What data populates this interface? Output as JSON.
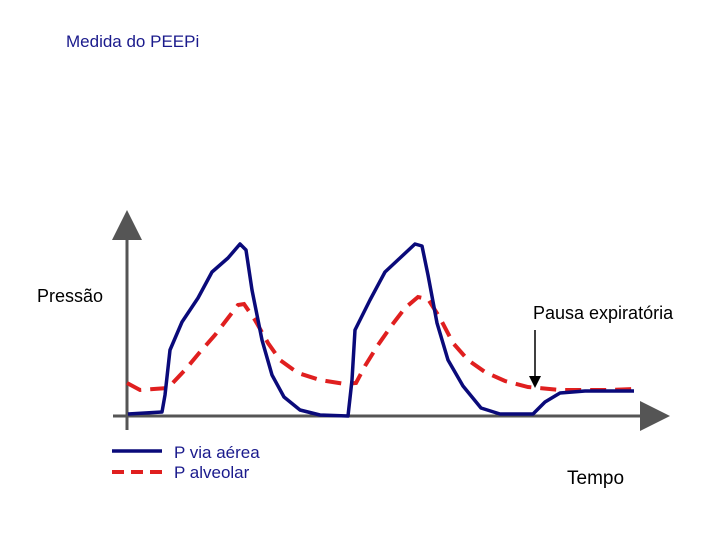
{
  "title": "Medida do PEEPi",
  "axes": {
    "ylabel": "Pressão",
    "xlabel": "Tempo"
  },
  "annotation": {
    "pause_label": "Pausa expiratória"
  },
  "legend": [
    {
      "label": "P via aérea",
      "style": "solid",
      "color": "#0a0a7a"
    },
    {
      "label": "P alveolar",
      "style": "dashed",
      "color": "#e01f1f"
    }
  ],
  "colors": {
    "axis": "#555555",
    "airway": "#0a0a7a",
    "alveolar": "#e01f1f",
    "text_title": "#1a1a8c"
  }
}
